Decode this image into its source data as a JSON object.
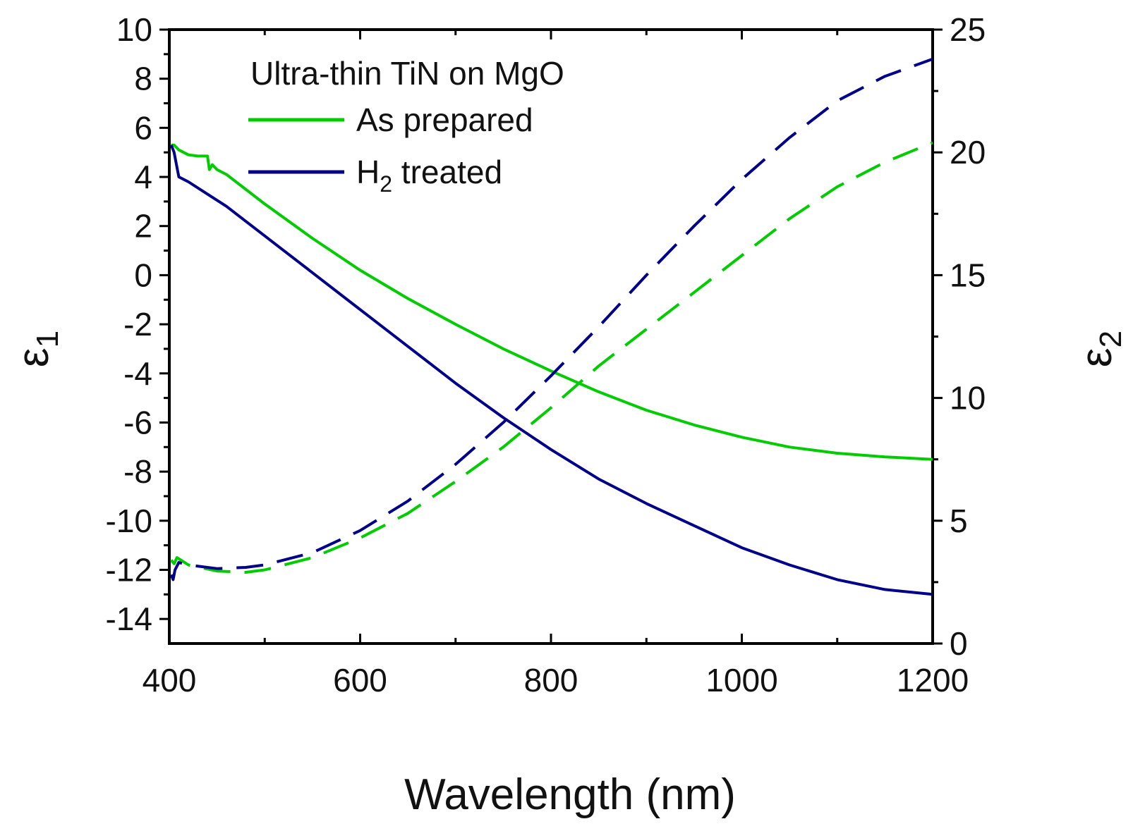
{
  "chart_data": {
    "type": "line",
    "title": "Ultra-thin TiN on MgO",
    "xlabel": "Wavelength (nm)",
    "ylabel": "ε",
    "ylabel_sub": "1",
    "y2label": "ε",
    "y2label_sub": "2",
    "xlim": [
      400,
      1200
    ],
    "ylim": [
      -15,
      10
    ],
    "y2lim": [
      0,
      25
    ],
    "x_ticks": [
      400,
      600,
      800,
      1000,
      1200
    ],
    "x_tick_labels": [
      "400",
      "600",
      "800",
      "1000",
      "1200"
    ],
    "y_ticks": [
      -14,
      -12,
      -10,
      -8,
      -6,
      -4,
      -2,
      0,
      2,
      4,
      6,
      8,
      10
    ],
    "y_tick_labels": [
      "-14",
      "-12",
      "-10",
      "-8",
      "-6",
      "-4",
      "-2",
      "0",
      "2",
      "4",
      "6",
      "8",
      "10"
    ],
    "y2_ticks": [
      0,
      5,
      10,
      15,
      20,
      25
    ],
    "y2_tick_labels": [
      "0",
      "5",
      "10",
      "15",
      "20",
      "25"
    ],
    "grid": false,
    "legend": {
      "placement": "top-left",
      "entries": [
        {
          "label": "As prepared",
          "color": "#00cc00"
        },
        {
          "label": "H",
          "sub": "2",
          "suffix": " treated",
          "color": "#00008b"
        }
      ]
    },
    "series": [
      {
        "name": "As prepared ε1",
        "axis": "left",
        "style": "solid",
        "color": "#00cc00",
        "x": [
          402,
          405,
          410,
          420,
          430,
          440,
          442,
          445,
          450,
          460,
          480,
          500,
          550,
          600,
          650,
          700,
          750,
          800,
          850,
          900,
          950,
          1000,
          1050,
          1100,
          1150,
          1200
        ],
        "y": [
          5.3,
          5.3,
          5.1,
          4.9,
          4.85,
          4.85,
          4.3,
          4.5,
          4.3,
          4.1,
          3.5,
          2.9,
          1.5,
          0.2,
          -0.95,
          -2.0,
          -3.0,
          -3.9,
          -4.75,
          -5.5,
          -6.1,
          -6.6,
          -7.0,
          -7.25,
          -7.4,
          -7.5
        ]
      },
      {
        "name": "H2 treated ε1",
        "axis": "left",
        "style": "solid",
        "color": "#00008b",
        "x": [
          402,
          405,
          408,
          410,
          420,
          440,
          460,
          480,
          500,
          550,
          600,
          650,
          700,
          750,
          800,
          850,
          900,
          950,
          1000,
          1050,
          1100,
          1150,
          1200
        ],
        "y": [
          5.3,
          5.0,
          4.4,
          4.0,
          3.8,
          3.3,
          2.8,
          2.2,
          1.6,
          0.1,
          -1.4,
          -2.9,
          -4.4,
          -5.8,
          -7.1,
          -8.3,
          -9.3,
          -10.2,
          -11.1,
          -11.8,
          -12.4,
          -12.8,
          -13.0
        ]
      },
      {
        "name": "As prepared ε2",
        "axis": "right",
        "style": "dashed",
        "color": "#00cc00",
        "x": [
          402,
          405,
          408,
          412,
          420,
          450,
          480,
          500,
          550,
          600,
          650,
          700,
          750,
          800,
          850,
          900,
          950,
          1000,
          1050,
          1100,
          1150,
          1200
        ],
        "y": [
          3.4,
          3.25,
          3.5,
          3.4,
          3.2,
          2.95,
          2.9,
          3.0,
          3.5,
          4.3,
          5.3,
          6.6,
          8.0,
          9.6,
          11.3,
          12.8,
          14.3,
          15.8,
          17.3,
          18.6,
          19.6,
          20.4
        ]
      },
      {
        "name": "H2 treated ε2",
        "axis": "right",
        "style": "dashed",
        "color": "#00008b",
        "x": [
          402,
          404,
          406,
          410,
          420,
          450,
          480,
          500,
          550,
          600,
          650,
          700,
          750,
          800,
          850,
          900,
          950,
          1000,
          1050,
          1100,
          1150,
          1200
        ],
        "y": [
          2.8,
          2.6,
          3.0,
          3.3,
          3.2,
          3.05,
          3.1,
          3.2,
          3.7,
          4.6,
          5.8,
          7.3,
          9.0,
          10.9,
          12.9,
          15.0,
          17.0,
          18.9,
          20.6,
          22.1,
          23.1,
          23.8
        ]
      }
    ]
  }
}
